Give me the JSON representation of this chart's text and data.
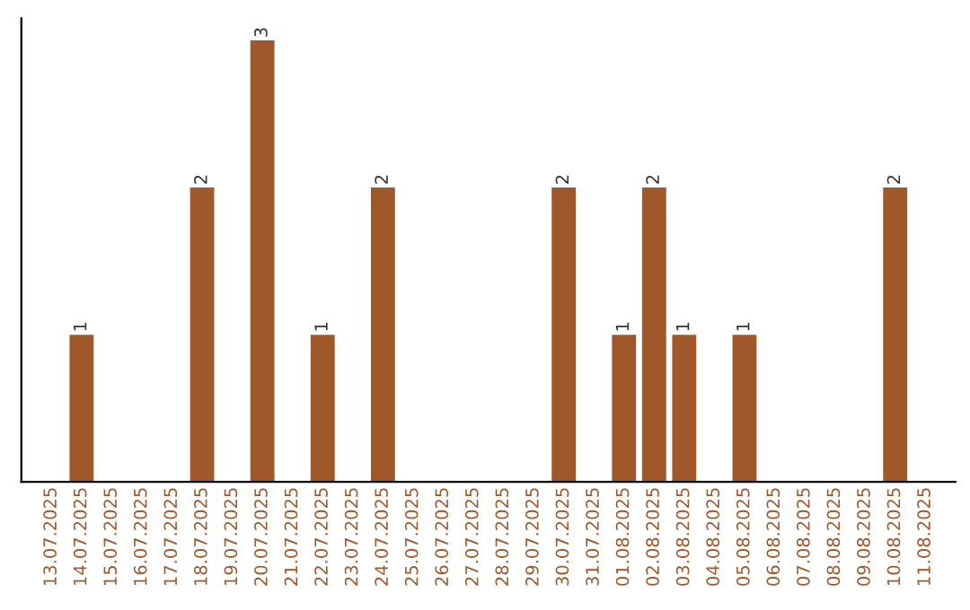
{
  "chart_data": {
    "type": "bar",
    "categories": [
      "13.07.2025",
      "14.07.2025",
      "15.07.2025",
      "16.07.2025",
      "17.07.2025",
      "18.07.2025",
      "19.07.2025",
      "20.07.2025",
      "21.07.2025",
      "22.07.2025",
      "23.07.2025",
      "24.07.2025",
      "25.07.2025",
      "26.07.2025",
      "27.07.2025",
      "28.07.2025",
      "29.07.2025",
      "30.07.2025",
      "31.07.2025",
      "01.08.2025",
      "02.08.2025",
      "03.08.2025",
      "04.08.2025",
      "05.08.2025",
      "06.08.2025",
      "07.08.2025",
      "08.08.2025",
      "09.08.2025",
      "10.08.2025",
      "11.08.2025"
    ],
    "values": [
      0,
      1,
      0,
      0,
      0,
      2,
      0,
      3,
      0,
      1,
      0,
      2,
      0,
      0,
      0,
      0,
      0,
      2,
      0,
      1,
      2,
      1,
      0,
      1,
      0,
      0,
      0,
      0,
      2,
      0
    ],
    "value_labels": [
      null,
      "1",
      null,
      null,
      null,
      "2",
      null,
      "3",
      null,
      "1",
      null,
      "2",
      null,
      null,
      null,
      null,
      null,
      "2",
      null,
      "1",
      "2",
      "1",
      null,
      "1",
      null,
      null,
      null,
      null,
      "2",
      null
    ],
    "color": "#a0582a",
    "tick_labels": "x",
    "grid": false,
    "legend": false
  }
}
